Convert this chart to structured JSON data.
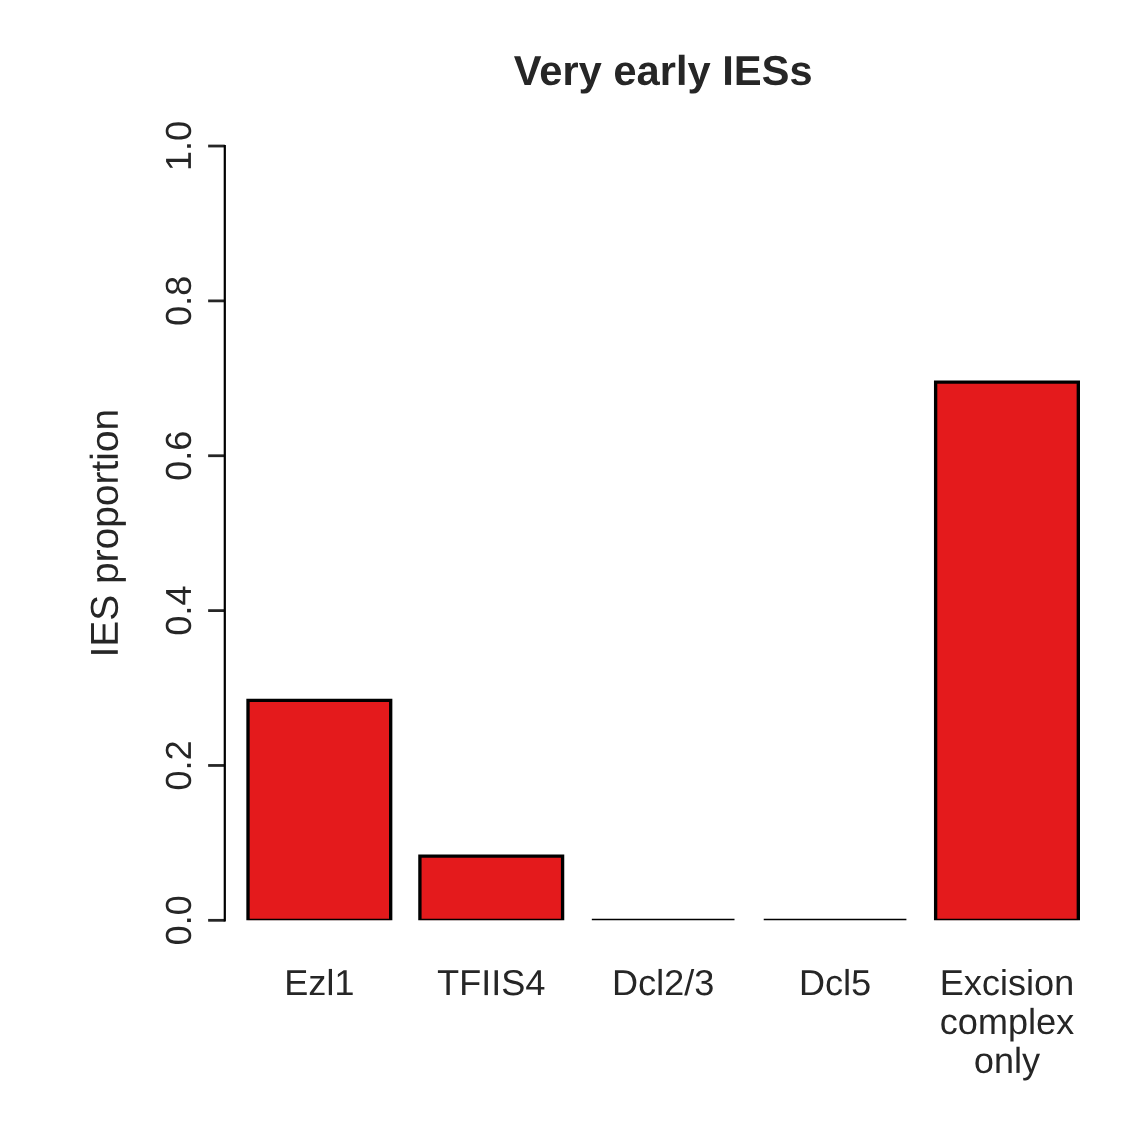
{
  "chart_data": {
    "type": "bar",
    "title": "Very early IESs",
    "ylabel": "IES proportion",
    "categories": [
      "Ezl1",
      "TFIIS4",
      "Dcl2/3",
      "Dcl5",
      "Excision\ncomplex\nonly"
    ],
    "values": [
      0.284,
      0.083,
      0,
      0,
      0.695
    ],
    "color": "#e41a1c",
    "ylim": [
      0,
      1
    ],
    "yticks": [
      {
        "value": 0,
        "label": "0.0"
      },
      0.2,
      0.4,
      0.6,
      0.8,
      {
        "value": 1,
        "label": "1.0"
      }
    ],
    "grid": false,
    "legend": false
  }
}
